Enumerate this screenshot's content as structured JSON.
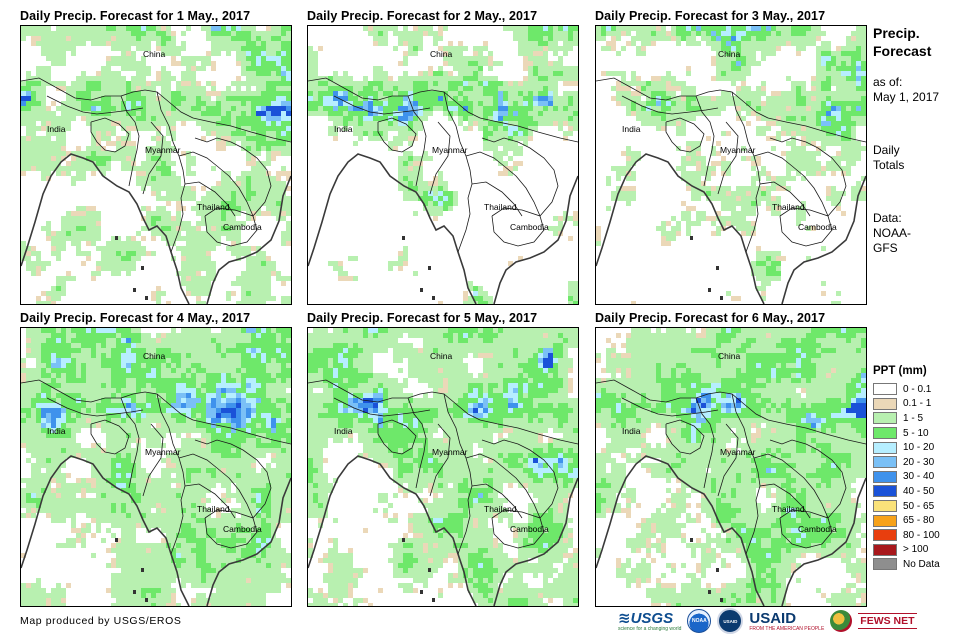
{
  "panels": [
    {
      "title": "Daily Precip. Forecast for 1 May., 2017",
      "seed": 11,
      "coverage": 0.52,
      "intensity": 1.0
    },
    {
      "title": "Daily Precip. Forecast for 2 May., 2017",
      "seed": 23,
      "coverage": 0.4,
      "intensity": 0.75
    },
    {
      "title": "Daily Precip. Forecast for 3 May., 2017",
      "seed": 37,
      "coverage": 0.42,
      "intensity": 0.85
    },
    {
      "title": "Daily Precip. Forecast for 4 May., 2017",
      "seed": 41,
      "coverage": 0.58,
      "intensity": 0.85
    },
    {
      "title": "Daily Precip. Forecast for 5 May., 2017",
      "seed": 53,
      "coverage": 0.6,
      "intensity": 1.0
    },
    {
      "title": "Daily Precip. Forecast for 6 May., 2017",
      "seed": 67,
      "coverage": 0.62,
      "intensity": 1.0
    }
  ],
  "map_labels": {
    "china": "China",
    "india": "India",
    "myanmar": "Myanmar",
    "thailand": "Thailand",
    "cambodia": "Cambodia"
  },
  "side": {
    "title_line1": "Precip.",
    "title_line2": "Forecast",
    "asof_line1": "as of:",
    "asof_line2": "May 1, 2017",
    "totals_line1": "Daily",
    "totals_line2": "Totals",
    "data_line1": "Data:",
    "data_line2": "NOAA-",
    "data_line3": "GFS"
  },
  "legend": {
    "title": "PPT (mm)",
    "items": [
      {
        "label": "0 - 0.1",
        "color": "#ffffff"
      },
      {
        "label": "0.1 - 1",
        "color": "#ebd8b8"
      },
      {
        "label": "1 - 5",
        "color": "#b8f0b0"
      },
      {
        "label": "5 - 10",
        "color": "#6ee86a"
      },
      {
        "label": "10 - 20",
        "color": "#b6eeff"
      },
      {
        "label": "20 - 30",
        "color": "#7ac0f6"
      },
      {
        "label": "30 - 40",
        "color": "#3f92ec"
      },
      {
        "label": "40 - 50",
        "color": "#1a52d8"
      },
      {
        "label": "50 - 65",
        "color": "#fae27a"
      },
      {
        "label": "65 - 80",
        "color": "#f7a21a"
      },
      {
        "label": "80 - 100",
        "color": "#e83e0e"
      },
      {
        "label": "> 100",
        "color": "#a8181c"
      },
      {
        "label": "No Data",
        "color": "#8e8e8e"
      }
    ]
  },
  "credit": "Map produced by USGS/EROS",
  "logos": {
    "usgs": "≋USGS",
    "usgs_tag": "science for a changing world",
    "noaa": "NOAA",
    "usaid_seal": "USAID",
    "usaid": "USAID",
    "usaid_tag": "FROM THE AMERICAN PEOPLE",
    "fews": "FEWS NET"
  }
}
